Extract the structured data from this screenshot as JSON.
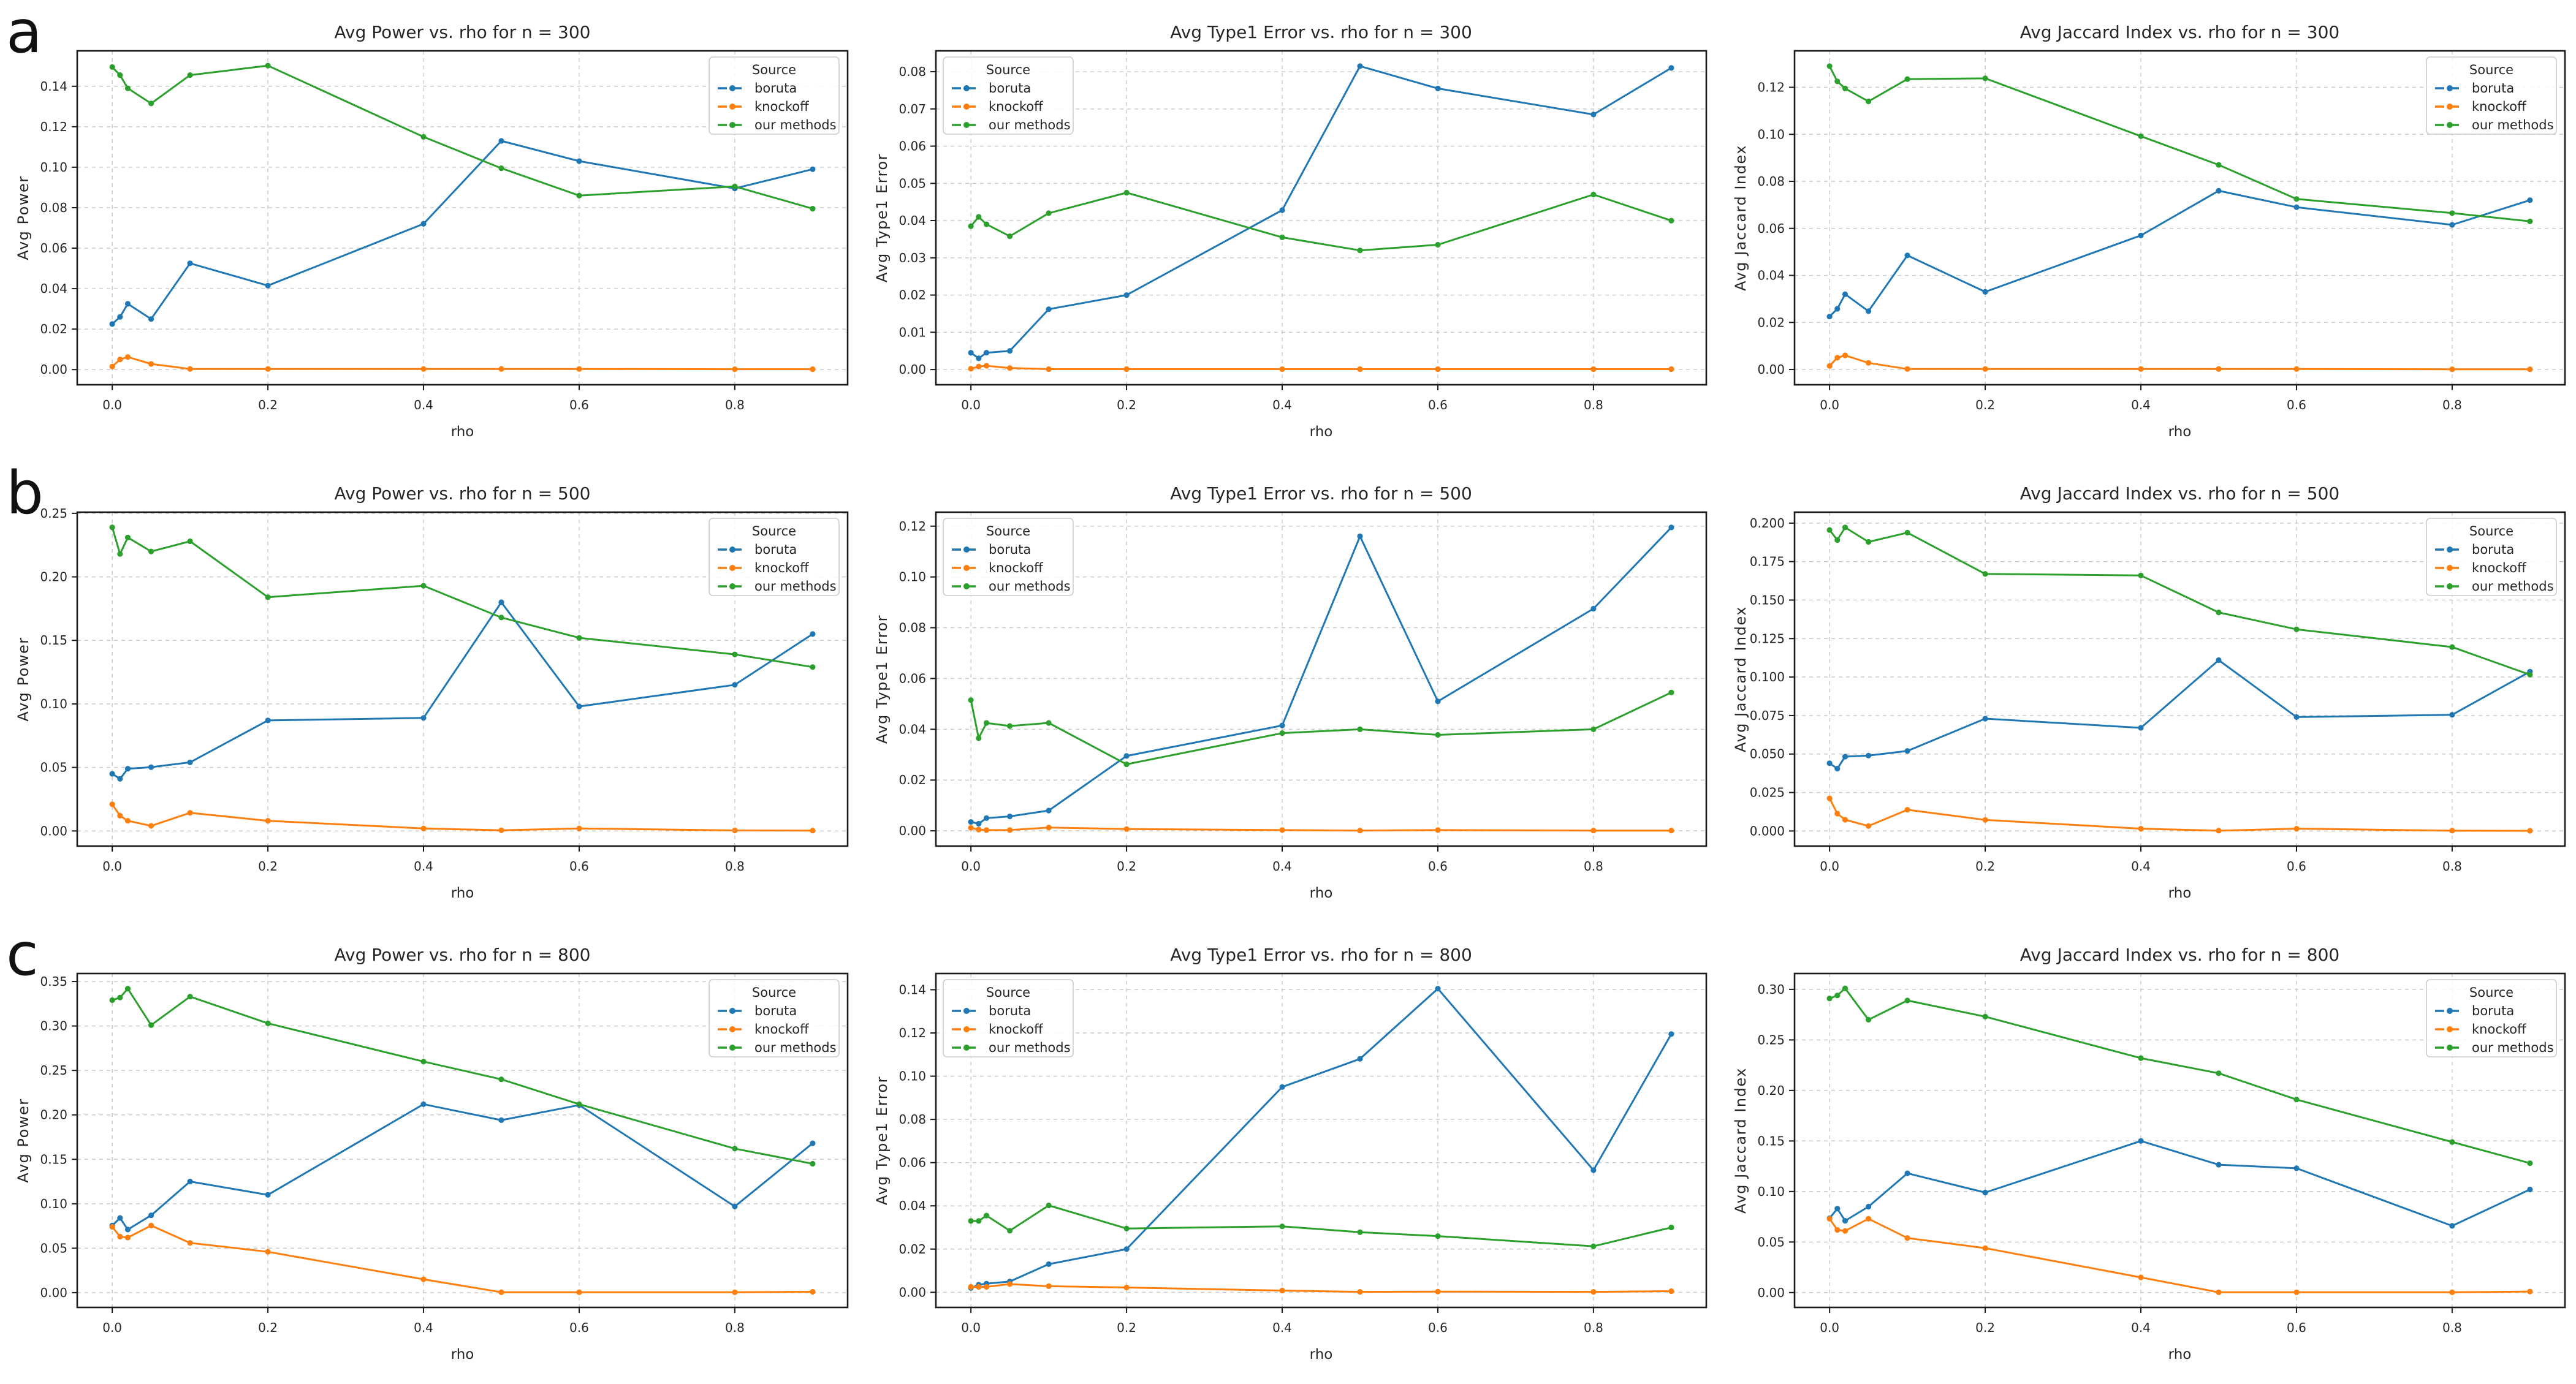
{
  "figure": {
    "rows": [
      {
        "label": "a",
        "n": "300"
      },
      {
        "label": "b",
        "n": "500"
      },
      {
        "label": "c",
        "n": "800"
      }
    ]
  },
  "colors": {
    "boruta": "#1f77b4",
    "knockoff": "#ff7f0e",
    "our methods": "#2ca02c"
  },
  "legend": {
    "title": "Source",
    "entries": [
      "boruta",
      "knockoff",
      "our methods"
    ]
  },
  "chart_data": [
    {
      "type": "line",
      "row": "a",
      "col": 0,
      "title": "Avg Power vs. rho for n = 300",
      "xlabel": "rho",
      "ylabel": "Avg Power",
      "x": [
        0,
        0.01,
        0.02,
        0.05,
        0.1,
        0.2,
        0.4,
        0.5,
        0.6,
        0.8,
        0.9
      ],
      "xticks": [
        0.0,
        0.2,
        0.4,
        0.6,
        0.8
      ],
      "xlim": [
        -0.045,
        0.945
      ],
      "ylim": [
        -0.0075,
        0.1575
      ],
      "yticks": [
        0.0,
        0.02,
        0.04,
        0.06,
        0.08,
        0.1,
        0.12,
        0.14
      ],
      "ytick_decimals": 2,
      "grid": true,
      "legend_pos": "upper right",
      "series": [
        {
          "name": "boruta",
          "values": [
            0.0225,
            0.026,
            0.0325,
            0.025,
            0.0525,
            0.0415,
            0.072,
            0.113,
            0.103,
            0.0895,
            0.099
          ]
        },
        {
          "name": "knockoff",
          "values": [
            0.0015,
            0.005,
            0.0062,
            0.0028,
            0.0003,
            0.0003,
            0.0003,
            0.0003,
            0.0003,
            0.0002,
            0.0002
          ]
        },
        {
          "name": "our methods",
          "values": [
            0.1495,
            0.1455,
            0.139,
            0.1315,
            0.1455,
            0.1502,
            0.115,
            0.0995,
            0.086,
            0.0905,
            0.0795
          ]
        }
      ]
    },
    {
      "type": "line",
      "row": "a",
      "col": 1,
      "title": "Avg Type1 Error vs. rho for n = 300",
      "xlabel": "rho",
      "ylabel": "Avg Type1 Error",
      "x": [
        0,
        0.01,
        0.02,
        0.05,
        0.1,
        0.2,
        0.4,
        0.5,
        0.6,
        0.8,
        0.9
      ],
      "xticks": [
        0.0,
        0.2,
        0.4,
        0.6,
        0.8
      ],
      "xlim": [
        -0.045,
        0.945
      ],
      "ylim": [
        -0.0041,
        0.0856
      ],
      "yticks": [
        0.0,
        0.01,
        0.02,
        0.03,
        0.04,
        0.05,
        0.06,
        0.07,
        0.08
      ],
      "ytick_decimals": 2,
      "grid": true,
      "legend_pos": "upper left",
      "series": [
        {
          "name": "boruta",
          "values": [
            0.0045,
            0.003,
            0.0045,
            0.005,
            0.0162,
            0.02,
            0.0428,
            0.0815,
            0.0755,
            0.0685,
            0.081
          ]
        },
        {
          "name": "knockoff",
          "values": [
            0.0002,
            0.0008,
            0.001,
            0.0004,
            0.0001,
            0.0001,
            0.0001,
            0.0001,
            0.0001,
            0.0001,
            0.0001
          ]
        },
        {
          "name": "our methods",
          "values": [
            0.0385,
            0.041,
            0.039,
            0.0358,
            0.042,
            0.0475,
            0.0355,
            0.032,
            0.0335,
            0.047,
            0.04
          ]
        }
      ]
    },
    {
      "type": "line",
      "row": "a",
      "col": 2,
      "title": "Avg Jaccard Index vs. rho for n = 300",
      "xlabel": "rho",
      "ylabel": "Avg Jaccard Index",
      "x": [
        0,
        0.01,
        0.02,
        0.05,
        0.1,
        0.2,
        0.4,
        0.5,
        0.6,
        0.8,
        0.9
      ],
      "xticks": [
        0.0,
        0.2,
        0.4,
        0.6,
        0.8
      ],
      "xlim": [
        -0.045,
        0.945
      ],
      "ylim": [
        -0.0065,
        0.1355
      ],
      "yticks": [
        0.0,
        0.02,
        0.04,
        0.06,
        0.08,
        0.1,
        0.12
      ],
      "ytick_decimals": 2,
      "grid": true,
      "legend_pos": "upper right",
      "series": [
        {
          "name": "boruta",
          "values": [
            0.0225,
            0.0258,
            0.032,
            0.0248,
            0.0485,
            0.033,
            0.057,
            0.076,
            0.069,
            0.0615,
            0.072
          ]
        },
        {
          "name": "knockoff",
          "values": [
            0.0015,
            0.005,
            0.006,
            0.0028,
            0.0002,
            0.0002,
            0.0002,
            0.0002,
            0.0002,
            0.0001,
            0.0001
          ]
        },
        {
          "name": "our methods",
          "values": [
            0.129,
            0.1225,
            0.1195,
            0.114,
            0.1235,
            0.1238,
            0.0992,
            0.087,
            0.0725,
            0.0665,
            0.063
          ]
        }
      ]
    },
    {
      "type": "line",
      "row": "b",
      "col": 0,
      "title": "Avg Power vs. rho for n = 500",
      "xlabel": "rho",
      "ylabel": "Avg Power",
      "x": [
        0,
        0.01,
        0.02,
        0.05,
        0.1,
        0.2,
        0.4,
        0.5,
        0.6,
        0.8,
        0.9
      ],
      "xticks": [
        0.0,
        0.2,
        0.4,
        0.6,
        0.8
      ],
      "xlim": [
        -0.045,
        0.945
      ],
      "ylim": [
        -0.0119,
        0.2509
      ],
      "yticks": [
        0.0,
        0.05,
        0.1,
        0.15,
        0.2,
        0.25
      ],
      "ytick_decimals": 2,
      "grid": true,
      "legend_pos": "upper right",
      "series": [
        {
          "name": "boruta",
          "values": [
            0.045,
            0.041,
            0.049,
            0.0502,
            0.054,
            0.087,
            0.089,
            0.18,
            0.098,
            0.115,
            0.155
          ]
        },
        {
          "name": "knockoff",
          "values": [
            0.021,
            0.012,
            0.008,
            0.004,
            0.0143,
            0.008,
            0.002,
            0.0005,
            0.002,
            0.0004,
            0.0003
          ]
        },
        {
          "name": "our methods",
          "values": [
            0.239,
            0.218,
            0.231,
            0.22,
            0.228,
            0.184,
            0.193,
            0.168,
            0.152,
            0.139,
            0.129
          ]
        }
      ]
    },
    {
      "type": "line",
      "row": "b",
      "col": 1,
      "title": "Avg Type1 Error vs. rho for n = 500",
      "xlabel": "rho",
      "ylabel": "Avg Type1 Error",
      "x": [
        0,
        0.01,
        0.02,
        0.05,
        0.1,
        0.2,
        0.4,
        0.5,
        0.6,
        0.8,
        0.9
      ],
      "xticks": [
        0.0,
        0.2,
        0.4,
        0.6,
        0.8
      ],
      "xlim": [
        -0.045,
        0.945
      ],
      "ylim": [
        -0.006,
        0.1255
      ],
      "yticks": [
        0.0,
        0.02,
        0.04,
        0.06,
        0.08,
        0.1,
        0.12
      ],
      "ytick_decimals": 2,
      "grid": true,
      "legend_pos": "upper left",
      "series": [
        {
          "name": "boruta",
          "values": [
            0.0035,
            0.0028,
            0.005,
            0.0057,
            0.008,
            0.0295,
            0.0415,
            0.116,
            0.051,
            0.0875,
            0.1195
          ]
        },
        {
          "name": "knockoff",
          "values": [
            0.0012,
            0.0005,
            0.0003,
            0.0003,
            0.0013,
            0.0007,
            0.0003,
            0.0001,
            0.0003,
            0.0001,
            0.0001
          ]
        },
        {
          "name": "our methods",
          "values": [
            0.0515,
            0.0365,
            0.0425,
            0.0413,
            0.0425,
            0.0262,
            0.0385,
            0.04,
            0.0378,
            0.04,
            0.0545
          ]
        }
      ]
    },
    {
      "type": "line",
      "row": "b",
      "col": 2,
      "title": "Avg Jaccard Index vs. rho for n = 500",
      "xlabel": "rho",
      "ylabel": "Avg Jaccard Index",
      "x": [
        0,
        0.01,
        0.02,
        0.05,
        0.1,
        0.2,
        0.4,
        0.5,
        0.6,
        0.8,
        0.9
      ],
      "xticks": [
        0.0,
        0.2,
        0.4,
        0.6,
        0.8
      ],
      "xlim": [
        -0.045,
        0.945
      ],
      "ylim": [
        -0.0098,
        0.2071
      ],
      "yticks": [
        0.0,
        0.025,
        0.05,
        0.075,
        0.1,
        0.125,
        0.15,
        0.175,
        0.2
      ],
      "ytick_decimals": 3,
      "grid": true,
      "legend_pos": "upper right",
      "series": [
        {
          "name": "boruta",
          "values": [
            0.044,
            0.0405,
            0.0483,
            0.049,
            0.052,
            0.073,
            0.067,
            0.111,
            0.074,
            0.0755,
            0.1035
          ]
        },
        {
          "name": "knockoff",
          "values": [
            0.0212,
            0.0113,
            0.0073,
            0.0032,
            0.0138,
            0.0072,
            0.0015,
            0.0002,
            0.0015,
            0.0002,
            0.0001
          ]
        },
        {
          "name": "our methods",
          "values": [
            0.1955,
            0.189,
            0.1972,
            0.1878,
            0.1938,
            0.167,
            0.166,
            0.142,
            0.131,
            0.1195,
            0.1015
          ]
        }
      ]
    },
    {
      "type": "line",
      "row": "c",
      "col": 0,
      "title": "Avg Power vs. rho for n = 800",
      "xlabel": "rho",
      "ylabel": "Avg Power",
      "x": [
        0,
        0.01,
        0.02,
        0.05,
        0.1,
        0.2,
        0.4,
        0.5,
        0.6,
        0.8,
        0.9
      ],
      "xticks": [
        0.0,
        0.2,
        0.4,
        0.6,
        0.8
      ],
      "xlim": [
        -0.045,
        0.945
      ],
      "ylim": [
        -0.0166,
        0.359
      ],
      "yticks": [
        0.0,
        0.05,
        0.1,
        0.15,
        0.2,
        0.25,
        0.3,
        0.35
      ],
      "ytick_decimals": 2,
      "grid": true,
      "legend_pos": "upper right",
      "series": [
        {
          "name": "boruta",
          "values": [
            0.0755,
            0.084,
            0.071,
            0.087,
            0.125,
            0.11,
            0.212,
            0.194,
            0.211,
            0.097,
            0.168
          ]
        },
        {
          "name": "knockoff",
          "values": [
            0.074,
            0.063,
            0.062,
            0.0755,
            0.056,
            0.046,
            0.015,
            0.0005,
            0.0005,
            0.0005,
            0.001
          ]
        },
        {
          "name": "our methods",
          "values": [
            0.329,
            0.332,
            0.342,
            0.301,
            0.333,
            0.303,
            0.26,
            0.24,
            0.212,
            0.162,
            0.145
          ]
        }
      ]
    },
    {
      "type": "line",
      "row": "c",
      "col": 1,
      "title": "Avg Type1 Error vs. rho for n = 800",
      "xlabel": "rho",
      "ylabel": "Avg Type1 Error",
      "x": [
        0,
        0.01,
        0.02,
        0.05,
        0.1,
        0.2,
        0.4,
        0.5,
        0.6,
        0.8,
        0.9
      ],
      "xticks": [
        0.0,
        0.2,
        0.4,
        0.6,
        0.8
      ],
      "xlim": [
        -0.045,
        0.945
      ],
      "ylim": [
        -0.007,
        0.1475
      ],
      "yticks": [
        0.0,
        0.02,
        0.04,
        0.06,
        0.08,
        0.1,
        0.12,
        0.14
      ],
      "ytick_decimals": 2,
      "grid": true,
      "legend_pos": "upper left",
      "series": [
        {
          "name": "boruta",
          "values": [
            0.002,
            0.0035,
            0.004,
            0.005,
            0.013,
            0.02,
            0.095,
            0.108,
            0.1405,
            0.0565,
            0.1195
          ]
        },
        {
          "name": "knockoff",
          "values": [
            0.0025,
            0.0025,
            0.0025,
            0.0038,
            0.0028,
            0.0022,
            0.0008,
            0.0002,
            0.0003,
            0.0002,
            0.0005
          ]
        },
        {
          "name": "our methods",
          "values": [
            0.033,
            0.033,
            0.0355,
            0.0285,
            0.0402,
            0.0295,
            0.0305,
            0.0278,
            0.026,
            0.0213,
            0.03
          ]
        }
      ]
    },
    {
      "type": "line",
      "row": "c",
      "col": 2,
      "title": "Avg Jaccard Index vs. rho for n = 800",
      "xlabel": "rho",
      "ylabel": "Avg Jaccard Index",
      "x": [
        0,
        0.01,
        0.02,
        0.05,
        0.1,
        0.2,
        0.4,
        0.5,
        0.6,
        0.8,
        0.9
      ],
      "xticks": [
        0.0,
        0.2,
        0.4,
        0.6,
        0.8
      ],
      "xlim": [
        -0.045,
        0.945
      ],
      "ylim": [
        -0.0147,
        0.3157
      ],
      "yticks": [
        0.0,
        0.05,
        0.1,
        0.15,
        0.2,
        0.25,
        0.3
      ],
      "ytick_decimals": 2,
      "grid": true,
      "legend_pos": "upper right",
      "series": [
        {
          "name": "boruta",
          "values": [
            0.0735,
            0.083,
            0.071,
            0.085,
            0.118,
            0.099,
            0.15,
            0.1265,
            0.123,
            0.066,
            0.102
          ]
        },
        {
          "name": "knockoff",
          "values": [
            0.073,
            0.062,
            0.061,
            0.073,
            0.054,
            0.044,
            0.015,
            0.0003,
            0.0003,
            0.0003,
            0.001
          ]
        },
        {
          "name": "our methods",
          "values": [
            0.291,
            0.294,
            0.301,
            0.27,
            0.289,
            0.273,
            0.232,
            0.217,
            0.191,
            0.149,
            0.128
          ]
        }
      ]
    }
  ]
}
